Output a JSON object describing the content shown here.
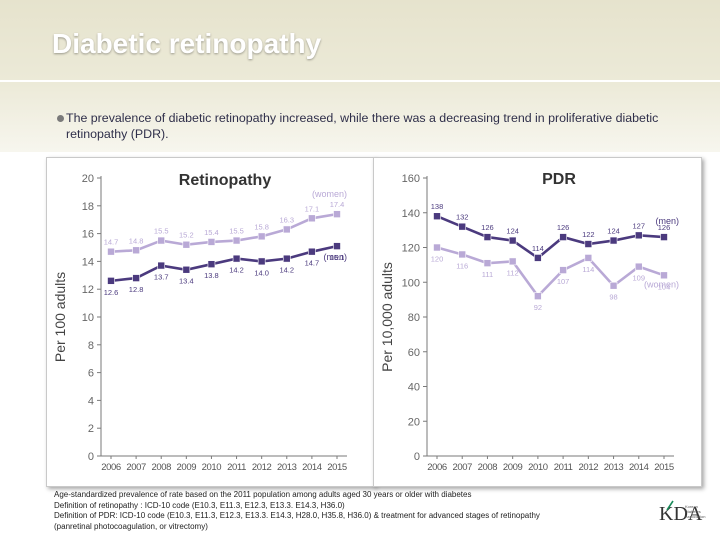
{
  "slide": {
    "title": "Diabetic retinopathy",
    "bullet": "The prevalence of diabetic retinopathy increased, while there was a decreasing trend in proliferative diabetic retinopathy (PDR).",
    "footnotes": [
      "Age-standardized prevalence of rate based on the 2011 population among adults aged 30 years or older with diabetes",
      "Definition of retinopathy : ICD-10 code (E10.3, E11.3, E12.3, E13.3. E14.3, H36.0)",
      "Definition of PDR: ICD-10 code (E10.3, E11.3, E12.3, E13.3. E14.3, H28.0, H35.8, H36.0) & treatment for advanced stages of retinopathy",
      "(panretinal photocoagulation, or vitrectomy)"
    ],
    "logo": {
      "letters": "KDA",
      "text": [
        "Korean",
        "Diabetes",
        "Association"
      ]
    }
  },
  "colors": {
    "men": "#4b3a7e",
    "women": "#b9a9d6",
    "axis": "#7a7a7a",
    "title_text": "#333333",
    "accent_green": "#1a8a5a"
  },
  "chart_data": [
    {
      "type": "line",
      "title": "Retinopathy",
      "ylabel": "Per 100 adults",
      "ylim": [
        0,
        20
      ],
      "yticks": [
        0,
        2,
        4,
        6,
        8,
        10,
        12,
        14,
        16,
        18,
        20
      ],
      "categories": [
        "2006",
        "2007",
        "2008",
        "2009",
        "2010",
        "2011",
        "2012",
        "2013",
        "2014",
        "2015"
      ],
      "series": [
        {
          "name": "(women)",
          "values": [
            14.7,
            14.8,
            15.5,
            15.2,
            15.4,
            15.5,
            15.8,
            16.3,
            17.1,
            17.4
          ],
          "labels": [
            "14.7",
            "14.8",
            "15.5",
            "15.2",
            "15.4",
            "15.5",
            "15.8",
            "16.3",
            "17.1",
            "17.4"
          ],
          "label_pos": "above"
        },
        {
          "name": "(men)",
          "values": [
            12.6,
            12.8,
            13.7,
            13.4,
            13.8,
            14.2,
            14.0,
            14.2,
            14.7,
            15.1
          ],
          "labels": [
            "12.6",
            "12.8",
            "13.7",
            "13.4",
            "13.8",
            "14.2",
            "14.0",
            "14.2",
            "14.7",
            "15.1"
          ],
          "label_pos": "below"
        }
      ]
    },
    {
      "type": "line",
      "title": "PDR",
      "ylabel": "Per 10,000 adults",
      "ylim": [
        0,
        160
      ],
      "yticks": [
        0,
        20,
        40,
        60,
        80,
        100,
        120,
        140,
        160
      ],
      "categories": [
        "2006",
        "2007",
        "2008",
        "2009",
        "2010",
        "2011",
        "2012",
        "2013",
        "2014",
        "2015"
      ],
      "series": [
        {
          "name": "(men)",
          "values": [
            138,
            132,
            126,
            124,
            114,
            126,
            122,
            124,
            127,
            126
          ],
          "labels": [
            "138",
            "132",
            "126",
            "124",
            "114",
            "126",
            "122",
            "124",
            "127",
            "126"
          ],
          "label_pos": "above"
        },
        {
          "name": "(women)",
          "values": [
            120,
            116,
            111,
            112,
            92,
            107,
            114,
            98,
            109,
            104
          ],
          "labels": [
            "120",
            "116",
            "111",
            "112",
            "92",
            "107",
            "114",
            "98",
            "109",
            "104"
          ],
          "label_pos": "below"
        }
      ]
    }
  ]
}
